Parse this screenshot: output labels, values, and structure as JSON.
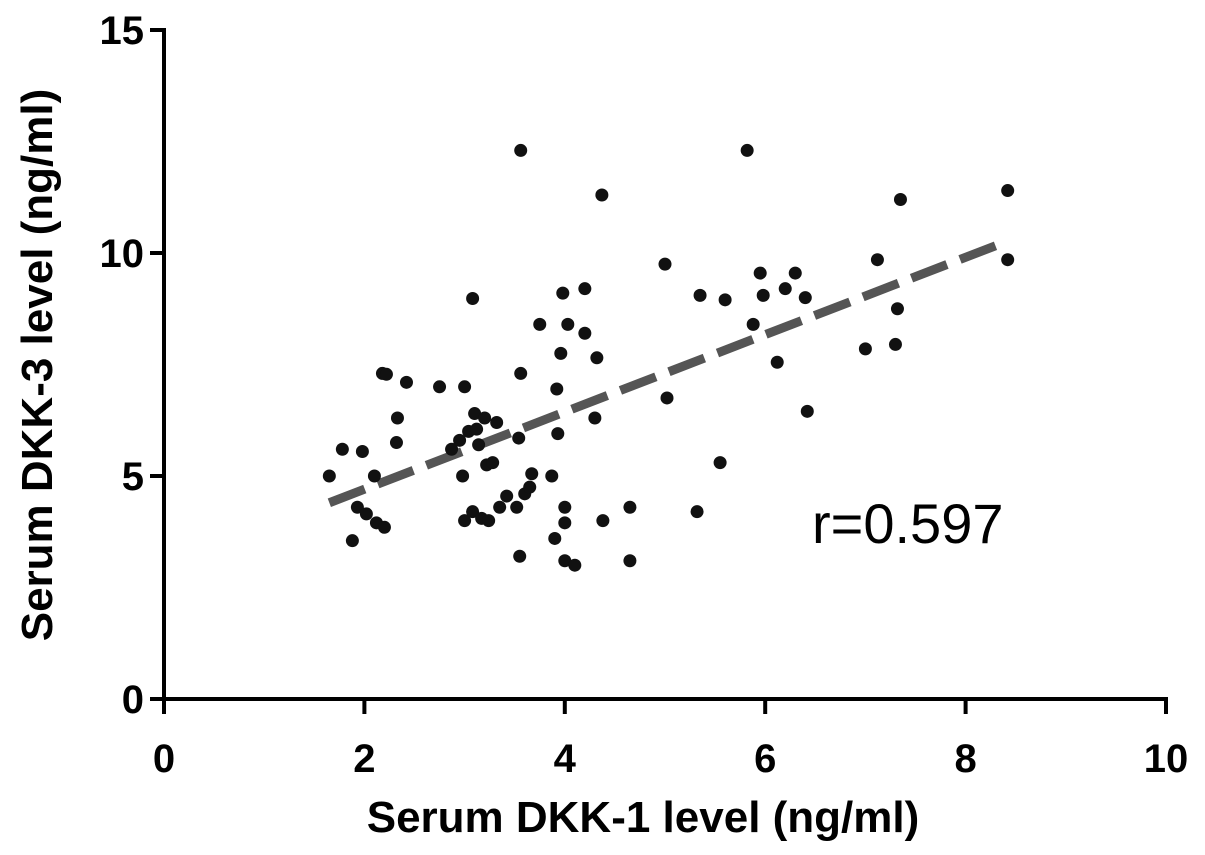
{
  "chart_data": {
    "type": "scatter",
    "xlabel": "Serum DKK-1 level (ng/ml)",
    "ylabel": "Serum DKK-3 level (ng/ml)",
    "xlim": [
      0,
      10
    ],
    "ylim": [
      0,
      15
    ],
    "xticks": [
      "0",
      "2",
      "4",
      "6",
      "8",
      "10"
    ],
    "yticks": [
      "0",
      "5",
      "10",
      "15"
    ],
    "grid": false,
    "annotation": "r=0.597",
    "trendline": {
      "style": "dashed",
      "x": [
        1.65,
        8.4
      ],
      "y": [
        4.4,
        10.25
      ]
    },
    "points": [
      [
        1.65,
        5.0
      ],
      [
        1.78,
        5.6
      ],
      [
        1.88,
        3.55
      ],
      [
        1.93,
        4.3
      ],
      [
        1.98,
        5.55
      ],
      [
        2.02,
        4.15
      ],
      [
        2.1,
        5.0
      ],
      [
        2.12,
        3.95
      ],
      [
        2.18,
        7.3
      ],
      [
        2.2,
        3.85
      ],
      [
        2.22,
        7.28
      ],
      [
        2.32,
        5.75
      ],
      [
        2.33,
        6.3
      ],
      [
        2.42,
        7.1
      ],
      [
        2.75,
        7.0
      ],
      [
        2.87,
        5.6
      ],
      [
        2.95,
        5.8
      ],
      [
        2.98,
        5.0
      ],
      [
        3.0,
        7.0
      ],
      [
        3.0,
        4.0
      ],
      [
        3.04,
        6.0
      ],
      [
        3.08,
        4.2
      ],
      [
        3.08,
        8.98
      ],
      [
        3.1,
        6.4
      ],
      [
        3.12,
        6.05
      ],
      [
        3.14,
        5.7
      ],
      [
        3.17,
        4.05
      ],
      [
        3.2,
        6.3
      ],
      [
        3.22,
        5.25
      ],
      [
        3.24,
        4.0
      ],
      [
        3.28,
        5.3
      ],
      [
        3.32,
        6.2
      ],
      [
        3.35,
        4.3
      ],
      [
        3.42,
        4.55
      ],
      [
        3.52,
        4.3
      ],
      [
        3.54,
        5.85
      ],
      [
        3.55,
        3.2
      ],
      [
        3.56,
        7.3
      ],
      [
        3.56,
        12.3
      ],
      [
        3.6,
        4.6
      ],
      [
        3.65,
        4.75
      ],
      [
        3.67,
        5.05
      ],
      [
        3.75,
        8.4
      ],
      [
        3.87,
        5.0
      ],
      [
        3.9,
        3.6
      ],
      [
        3.92,
        6.95
      ],
      [
        3.93,
        5.95
      ],
      [
        3.96,
        7.75
      ],
      [
        3.98,
        9.1
      ],
      [
        4.0,
        4.3
      ],
      [
        4.0,
        3.95
      ],
      [
        4.0,
        3.1
      ],
      [
        4.03,
        8.4
      ],
      [
        4.1,
        3.0
      ],
      [
        4.2,
        8.2
      ],
      [
        4.2,
        9.2
      ],
      [
        4.3,
        6.3
      ],
      [
        4.32,
        7.65
      ],
      [
        4.37,
        11.3
      ],
      [
        4.38,
        4.0
      ],
      [
        4.65,
        4.3
      ],
      [
        4.65,
        3.1
      ],
      [
        5.0,
        9.75
      ],
      [
        5.02,
        6.75
      ],
      [
        5.32,
        4.2
      ],
      [
        5.35,
        9.05
      ],
      [
        5.55,
        5.3
      ],
      [
        5.6,
        8.95
      ],
      [
        5.82,
        12.3
      ],
      [
        5.88,
        8.4
      ],
      [
        5.95,
        9.55
      ],
      [
        5.98,
        9.05
      ],
      [
        6.12,
        7.55
      ],
      [
        6.2,
        9.2
      ],
      [
        6.3,
        9.55
      ],
      [
        6.42,
        6.45
      ],
      [
        6.4,
        9.0
      ],
      [
        7.0,
        7.85
      ],
      [
        7.12,
        9.85
      ],
      [
        7.3,
        7.95
      ],
      [
        7.32,
        8.75
      ],
      [
        7.35,
        11.2
      ],
      [
        8.42,
        11.4
      ],
      [
        8.42,
        9.85
      ]
    ]
  }
}
